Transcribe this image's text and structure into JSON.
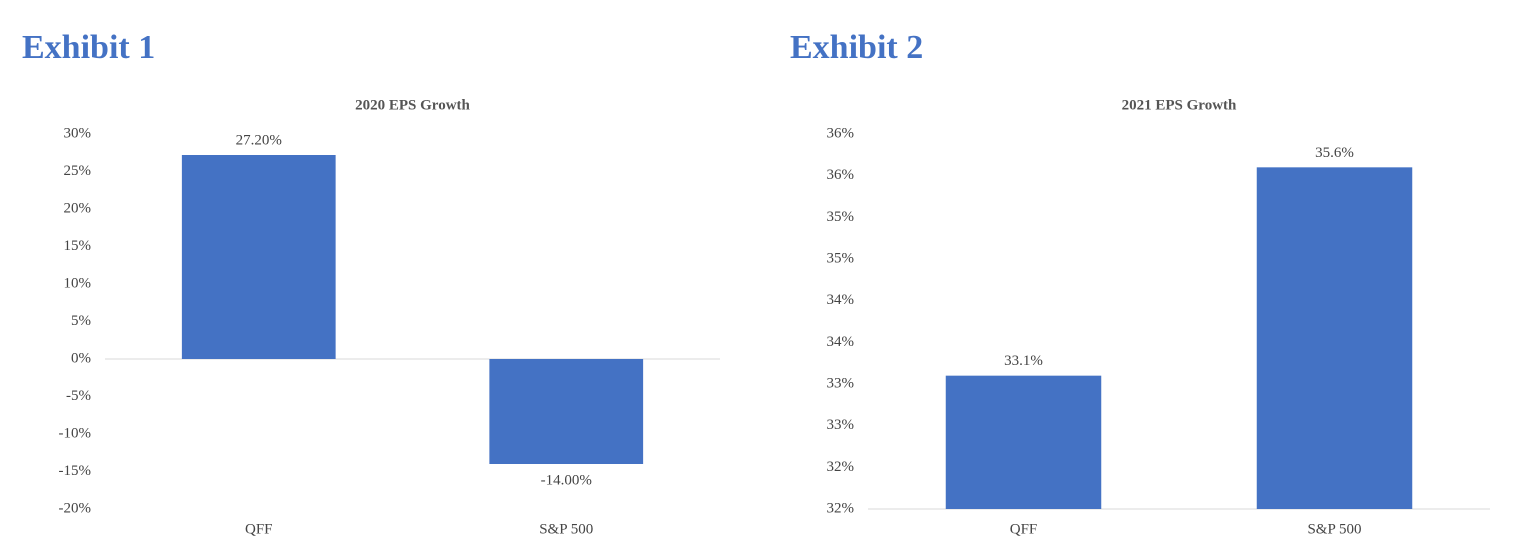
{
  "chart_data": [
    {
      "type": "bar",
      "heading": "Exhibit 1",
      "title": "2020 EPS Growth",
      "categories": [
        "QFF",
        "S&P 500"
      ],
      "values": [
        27.2,
        -14.0
      ],
      "value_labels": [
        "27.20%",
        "-14.00%"
      ],
      "color": "#4472c4",
      "ylim": [
        -20,
        30
      ],
      "yticks": [
        {
          "value": -20,
          "label": "-20%"
        },
        {
          "value": -15,
          "label": "-15%"
        },
        {
          "value": -10,
          "label": "-10%"
        },
        {
          "value": -5,
          "label": "-5%"
        },
        {
          "value": 0,
          "label": "0%"
        },
        {
          "value": 5,
          "label": "5%"
        },
        {
          "value": 10,
          "label": "10%"
        },
        {
          "value": 15,
          "label": "15%"
        },
        {
          "value": 20,
          "label": "20%"
        },
        {
          "value": 25,
          "label": "25%"
        },
        {
          "value": 30,
          "label": "30%"
        }
      ],
      "grid": false
    },
    {
      "type": "bar",
      "heading": "Exhibit 2",
      "title": "2021 EPS Growth",
      "categories": [
        "QFF",
        "S&P 500"
      ],
      "values": [
        33.1,
        35.6
      ],
      "value_labels": [
        "33.1%",
        "35.6%"
      ],
      "color": "#4472c4",
      "ylim": [
        31.5,
        36
      ],
      "yticks": [
        {
          "value": 31.5,
          "label": "32%"
        },
        {
          "value": 32,
          "label": "32%"
        },
        {
          "value": 32.5,
          "label": "33%"
        },
        {
          "value": 33,
          "label": "33%"
        },
        {
          "value": 33.5,
          "label": "34%"
        },
        {
          "value": 34,
          "label": "34%"
        },
        {
          "value": 34.5,
          "label": "35%"
        },
        {
          "value": 35,
          "label": "35%"
        },
        {
          "value": 35.5,
          "label": "36%"
        },
        {
          "value": 36,
          "label": "36%"
        }
      ],
      "grid": false
    }
  ]
}
